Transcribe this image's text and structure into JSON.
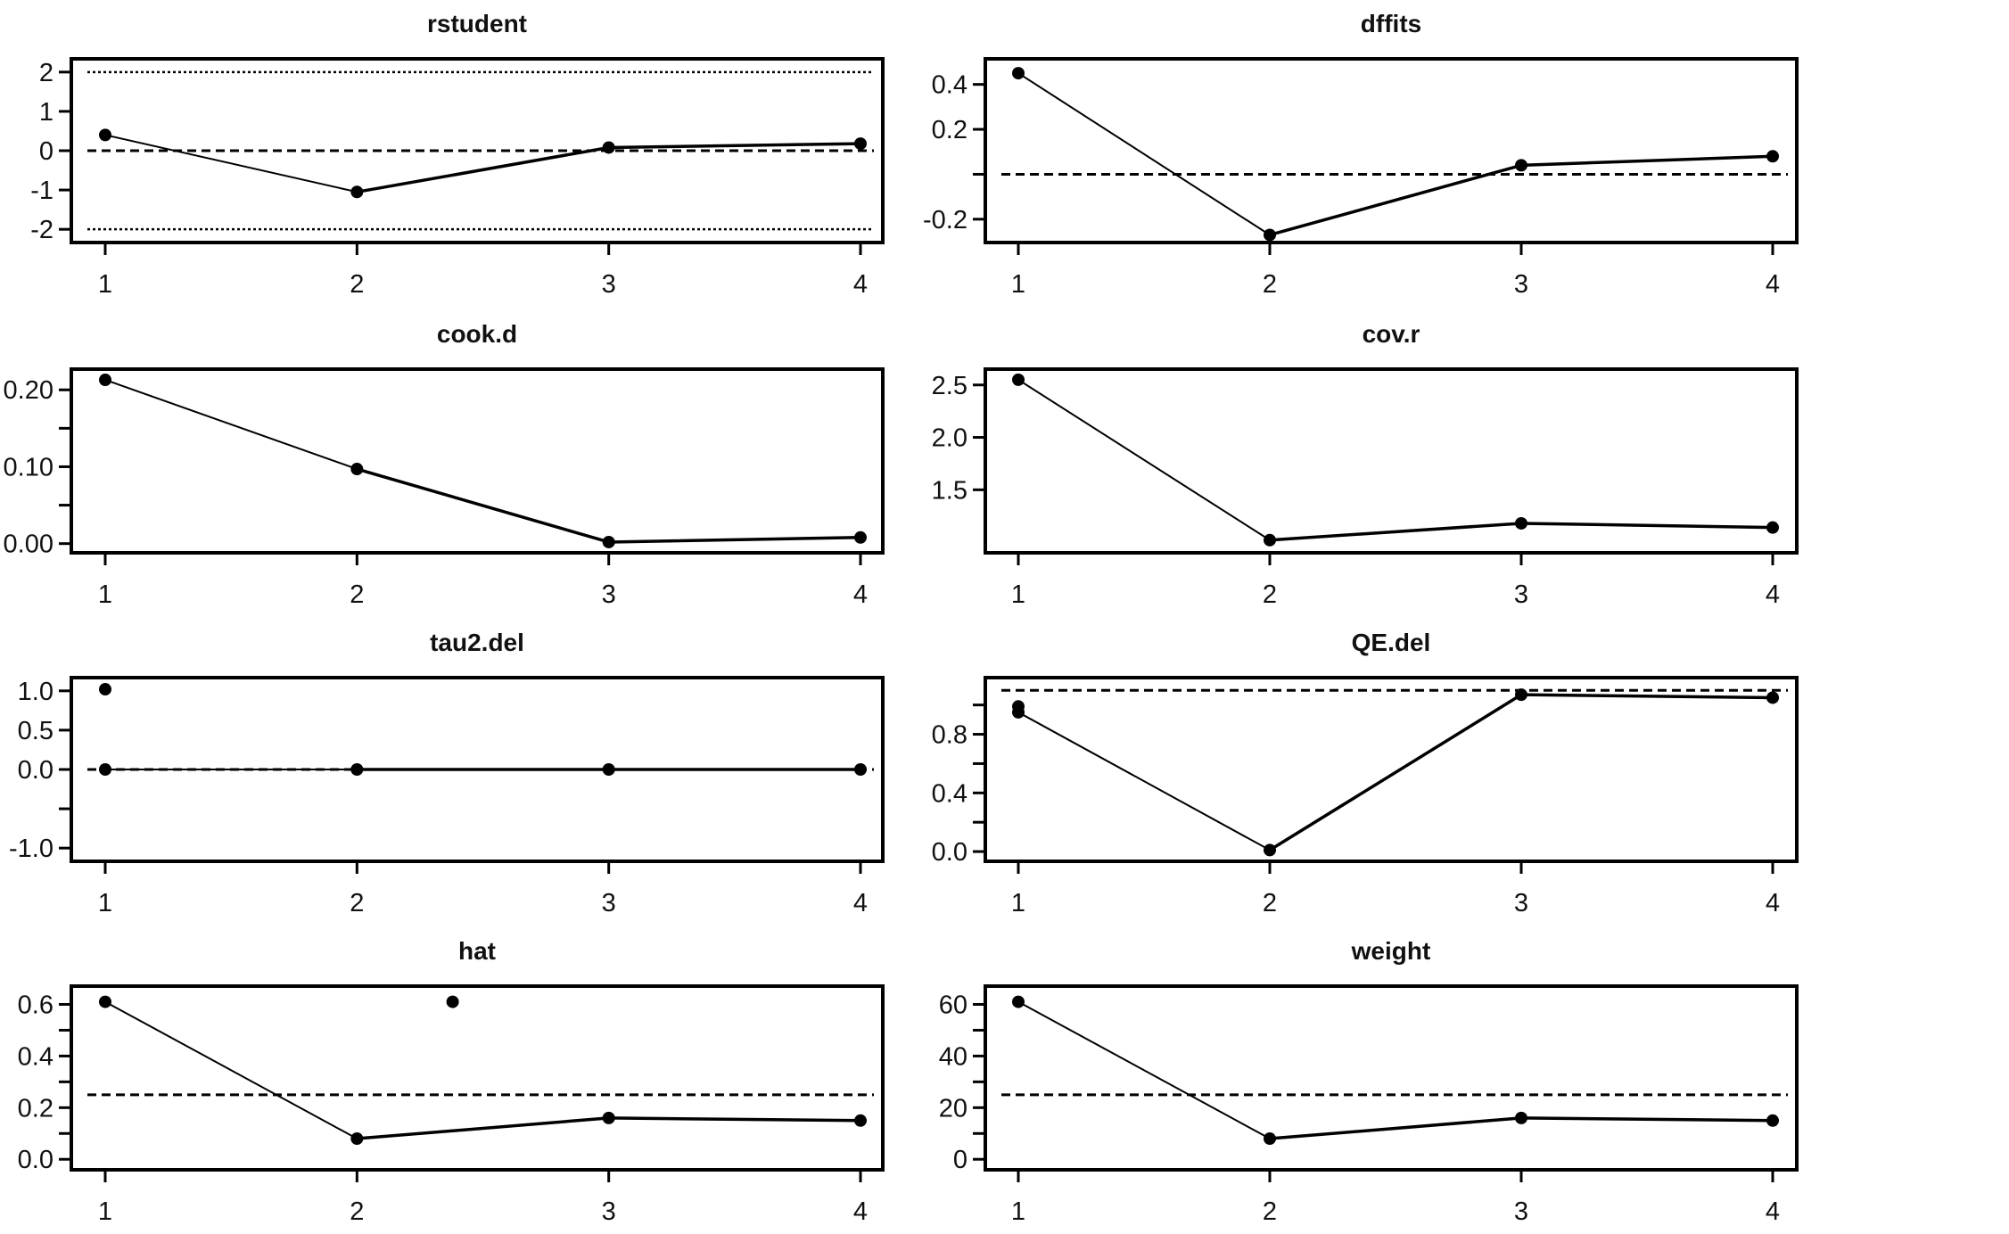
{
  "figure": {
    "colors": {
      "ink": "#000000",
      "background": "#ffffff"
    }
  },
  "chart_data": [
    {
      "name": "rstudent",
      "type": "line",
      "title": "rstudent",
      "x": [
        1,
        2,
        3,
        4
      ],
      "values": [
        0.4,
        -1.05,
        0.08,
        0.18
      ],
      "xticks": [
        "1",
        "2",
        "3",
        "4"
      ],
      "ylim": [
        -2.2,
        2.2
      ],
      "yticks": [
        {
          "v": 2,
          "label": "2"
        },
        {
          "v": 1,
          "label": "1"
        },
        {
          "v": 0,
          "label": "0"
        },
        {
          "v": -1,
          "label": "-1"
        },
        {
          "v": -2,
          "label": "-2"
        }
      ],
      "reference_lines": [
        {
          "y": 2,
          "style": "dotted"
        },
        {
          "y": 0,
          "style": "dashed"
        },
        {
          "y": -2,
          "style": "dotted"
        }
      ],
      "grid": false
    },
    {
      "name": "dffits",
      "type": "line",
      "title": "dffits",
      "x": [
        1,
        2,
        3,
        4
      ],
      "values": [
        0.45,
        -0.27,
        0.04,
        0.08
      ],
      "xticks": [
        "1",
        "2",
        "3",
        "4"
      ],
      "ylim": [
        -0.28,
        0.49
      ],
      "yticks": [
        {
          "v": 0.4,
          "label": "0.4"
        },
        {
          "v": 0.2,
          "label": "0.2"
        },
        {
          "v": 0,
          "label": ""
        },
        {
          "v": -0.2,
          "label": "-0.2"
        }
      ],
      "reference_lines": [
        {
          "y": 0.0,
          "style": "dashed"
        }
      ],
      "grid": false
    },
    {
      "name": "cook.d",
      "type": "line",
      "title": "cook.d",
      "x": [
        1,
        2,
        3,
        4
      ],
      "values": [
        0.213,
        0.097,
        0.002,
        0.008
      ],
      "xticks": [
        "1",
        "2",
        "3",
        "4"
      ],
      "ylim": [
        -0.005,
        0.22
      ],
      "yticks": [
        {
          "v": 0.2,
          "label": "0.20"
        },
        {
          "v": 0.15,
          "label": ""
        },
        {
          "v": 0.1,
          "label": "0.10"
        },
        {
          "v": 0.05,
          "label": ""
        },
        {
          "v": 0.0,
          "label": "0.00"
        }
      ],
      "reference_lines": [],
      "grid": false
    },
    {
      "name": "cov.r",
      "type": "line",
      "title": "cov.r",
      "x": [
        1,
        2,
        3,
        4
      ],
      "values": [
        2.55,
        1.02,
        1.18,
        1.14
      ],
      "xticks": [
        "1",
        "2",
        "3",
        "4"
      ],
      "ylim": [
        0.95,
        2.6
      ],
      "yticks": [
        {
          "v": 2.5,
          "label": "2.5"
        },
        {
          "v": 2.0,
          "label": "2.0"
        },
        {
          "v": 1.5,
          "label": "1.5"
        }
      ],
      "reference_lines": [],
      "grid": false
    },
    {
      "name": "tau2.del",
      "type": "line",
      "title": "tau2.del",
      "x": [
        1,
        2,
        3,
        4
      ],
      "values": [
        0,
        0,
        0,
        0
      ],
      "xticks": [
        "1",
        "2",
        "3",
        "4"
      ],
      "ylim": [
        -1.1,
        1.1
      ],
      "yticks": [
        {
          "v": 1.0,
          "label": "1.0"
        },
        {
          "v": 0.5,
          "label": "0.5"
        },
        {
          "v": 0.0,
          "label": "0.0"
        },
        {
          "v": -0.5,
          "label": ""
        },
        {
          "v": -1.0,
          "label": "-1.0"
        }
      ],
      "reference_lines": [
        {
          "y": 0,
          "style": "dashed"
        }
      ],
      "extra_points": [
        {
          "x": 1,
          "y": 1.02
        }
      ],
      "grid": false
    },
    {
      "name": "QE.del",
      "type": "line",
      "title": "QE.del",
      "x": [
        1,
        2,
        3,
        4
      ],
      "values": [
        0.95,
        0.01,
        1.07,
        1.05
      ],
      "xticks": [
        "1",
        "2",
        "3",
        "4"
      ],
      "ylim": [
        -0.03,
        1.15
      ],
      "yticks": [
        {
          "v": 1.0,
          "label": ""
        },
        {
          "v": 0.8,
          "label": "0.8"
        },
        {
          "v": 0.6,
          "label": ""
        },
        {
          "v": 0.4,
          "label": "0.4"
        },
        {
          "v": 0.2,
          "label": ""
        },
        {
          "v": 0.0,
          "label": "0.0"
        }
      ],
      "reference_lines": [
        {
          "y": 1.1,
          "style": "dashed"
        }
      ],
      "extra_points": [
        {
          "x": 1,
          "y": 0.99
        }
      ],
      "grid": false
    },
    {
      "name": "hat",
      "type": "line",
      "title": "hat",
      "x": [
        1,
        2,
        3,
        4
      ],
      "values": [
        0.61,
        0.08,
        0.16,
        0.15
      ],
      "xticks": [
        "1",
        "2",
        "3",
        "4"
      ],
      "ylim": [
        -0.02,
        0.65
      ],
      "yticks": [
        {
          "v": 0.6,
          "label": "0.6"
        },
        {
          "v": 0.5,
          "label": ""
        },
        {
          "v": 0.4,
          "label": "0.4"
        },
        {
          "v": 0.3,
          "label": ""
        },
        {
          "v": 0.2,
          "label": "0.2"
        },
        {
          "v": 0.1,
          "label": ""
        },
        {
          "v": 0.0,
          "label": "0.0"
        }
      ],
      "reference_lines": [
        {
          "y": 0.25,
          "style": "dashed"
        }
      ],
      "extra_points": [
        {
          "x": 2.38,
          "y": 0.61
        }
      ],
      "grid": false
    },
    {
      "name": "weight",
      "type": "line",
      "title": "weight",
      "x": [
        1,
        2,
        3,
        4
      ],
      "values": [
        61,
        8,
        16,
        15
      ],
      "xticks": [
        "1",
        "2",
        "3",
        "4"
      ],
      "ylim": [
        -2,
        65
      ],
      "yticks": [
        {
          "v": 60,
          "label": "60"
        },
        {
          "v": 50,
          "label": ""
        },
        {
          "v": 40,
          "label": "40"
        },
        {
          "v": 30,
          "label": ""
        },
        {
          "v": 20,
          "label": "20"
        },
        {
          "v": 10,
          "label": ""
        },
        {
          "v": 0,
          "label": "0"
        }
      ],
      "reference_lines": [
        {
          "y": 25,
          "style": "dashed"
        }
      ],
      "grid": false
    }
  ]
}
